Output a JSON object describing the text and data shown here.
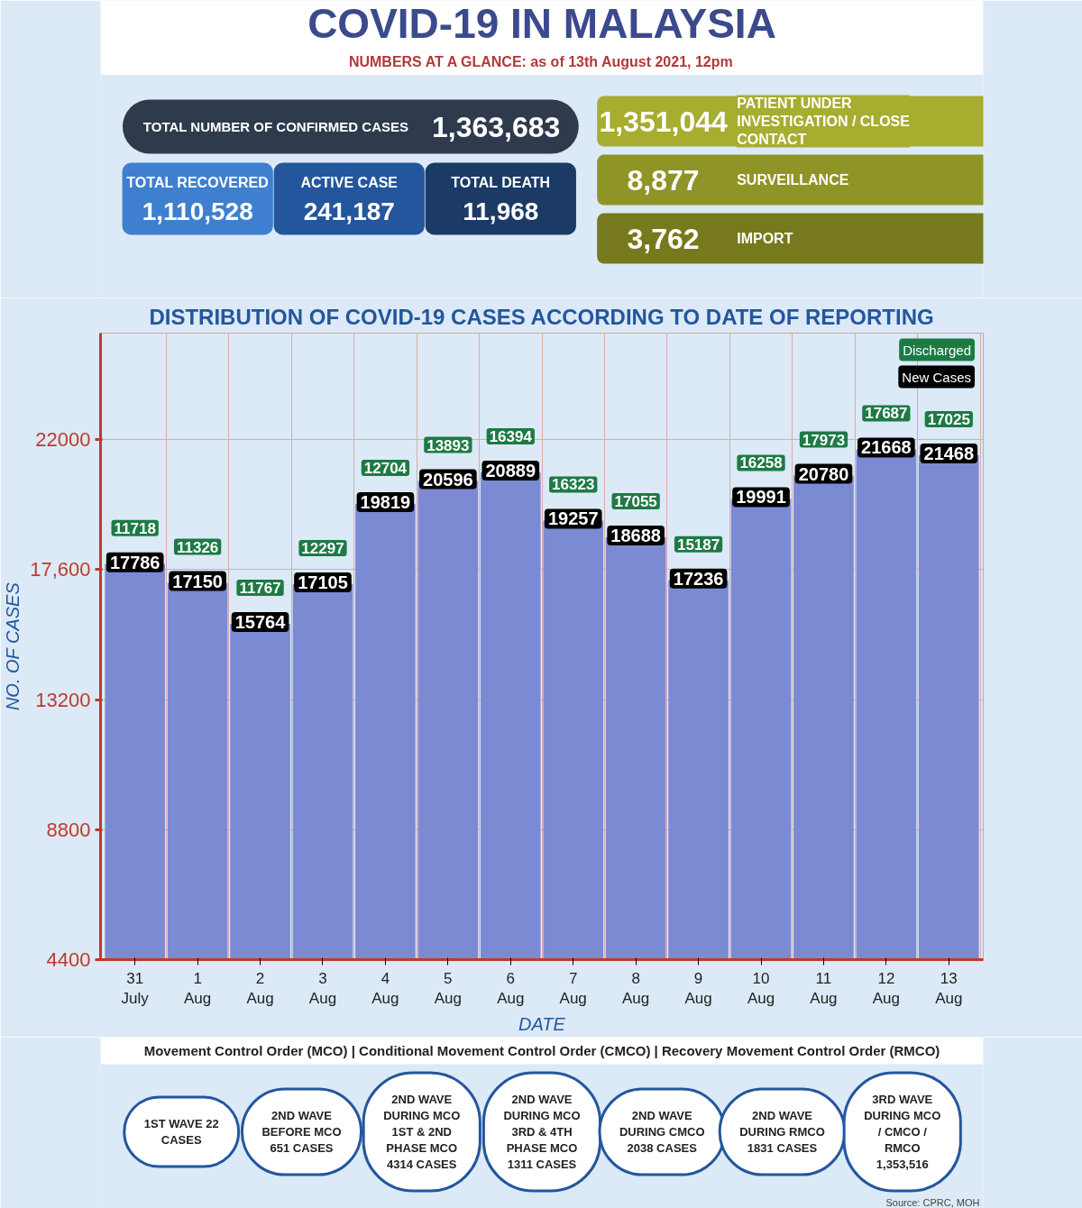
{
  "chart_data": [
    {
      "type": "other",
      "title": "COVID-19 IN MALAYSIA",
      "subtitle": "NUMBERS AT A GLANCE: as of 13th August 2021, 12pm",
      "categories": [
        "TOTAL NUMBER OF CONFIRMED CASES",
        "TOTAL RECOVERED",
        "ACTIVE CASE",
        "TOTAL DEATH",
        "PATIENT UNDER INVESTIGATION / CLOSE CONTACT",
        "SURVEILLANCE",
        "IMPORT"
      ],
      "value_labels": [
        "1,363,683",
        "1,110,528",
        "241,187",
        "11,968",
        "1,351,044",
        "8,877",
        "3,762"
      ],
      "colors": [
        "#2f3a4d",
        "#3f7fd0",
        "#24569e",
        "#1b3a66",
        "#a6ad2f",
        "#8f9426",
        "#767a1d"
      ]
    },
    {
      "type": "bar",
      "title": "DISTRIBUTION OF COVID-19 CASES ACCORDING TO DATE OF REPORTING",
      "ylabel": "NO. OF CASES",
      "xlabel": "DATE",
      "categories": [
        "31 July",
        "1 Aug",
        "2 Aug",
        "3 Aug",
        "4 Aug",
        "5 Aug",
        "6 Aug",
        "7 Aug",
        "8 Aug",
        "9 Aug",
        "10 Aug",
        "11 Aug",
        "12 Aug",
        "13 Aug"
      ],
      "series": [
        {
          "name": "New Cases",
          "color": "#7b8bd3",
          "values": [
            17786,
            17150,
            15764,
            17105,
            19819,
            20596,
            20889,
            19257,
            18688,
            17236,
            19991,
            20780,
            21668,
            21468
          ]
        }
      ],
      "data_labels": true,
      "ylim": [
        4400,
        25600
      ],
      "yticks": [
        4400,
        8800,
        13200,
        {
          "value": 17600,
          "label": "17,600"
        },
        22000
      ],
      "grid": true,
      "legend": "top right",
      "annotations": [
        "Discharged",
        {
          "text": "11718",
          "x": "31 July",
          "y": 17786
        },
        {
          "text": "11326",
          "x": "1 Aug",
          "y": 17150
        },
        {
          "text": "11767",
          "x": "2 Aug",
          "y": 15764
        },
        {
          "text": "12297",
          "x": "3 Aug",
          "y": 17105
        },
        {
          "text": "12704",
          "x": "4 Aug",
          "y": 19819
        },
        {
          "text": "13893",
          "x": "5 Aug",
          "y": 20596
        },
        {
          "text": "16394",
          "x": "6 Aug",
          "y": 20889
        },
        {
          "text": "16323",
          "x": "7 Aug",
          "y": 19257
        },
        {
          "text": "17055",
          "x": "8 Aug",
          "y": 18688
        },
        {
          "text": "15187",
          "x": "9 Aug",
          "y": 17236
        },
        {
          "text": "16258",
          "x": "10 Aug",
          "y": 19991
        },
        {
          "text": "17973",
          "x": "11 Aug",
          "y": 20780
        },
        {
          "text": "17687",
          "x": "12 Aug",
          "y": 21668
        },
        {
          "text": "17025",
          "x": "13 Aug",
          "y": 21468
        }
      ]
    },
    {
      "type": "other",
      "title": "Movement Control Order (MCO) | Conditional Movement Control Order (CMCO) | Recovery Movement Control Order (RMCO)",
      "annotations": [
        "1ST WAVE 22 CASES",
        "2ND WAVE BEFORE MCO 651 CASES",
        "2ND WAVE DURING MCO 1ST & 2ND PHASE MCO 4314 CASES",
        "2ND WAVE DURING MCO 3RD & 4TH PHASE MCO 1311 CASES",
        "2ND WAVE DURING CMCO 2038 CASES",
        "2ND WAVE DURING RMCO 1831 CASES",
        "3RD WAVE DURING MCO / CMCO / RMCO 1,353,516",
        "Source: CPRC, MOH"
      ]
    }
  ]
}
